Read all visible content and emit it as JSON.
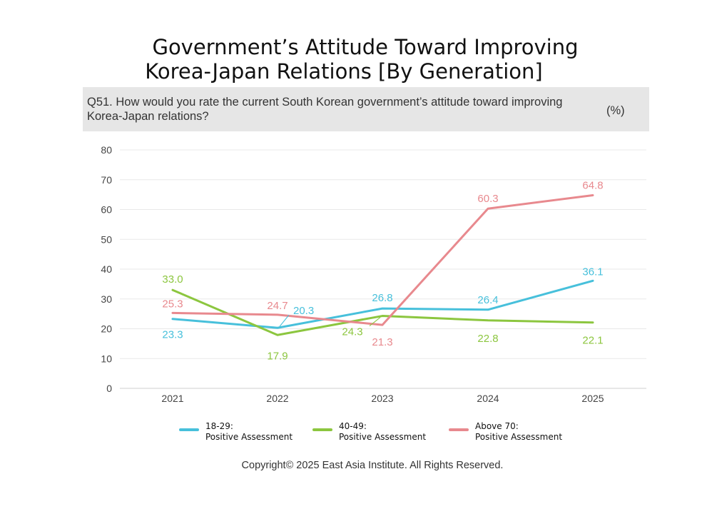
{
  "title_line1": "Government’s Attitude Toward Improving",
  "title_line2": "Korea-Japan Relations  [By Generation]",
  "question": "Q51. How would you rate the current South Korean government’s attitude toward improving Korea-Japan relations?",
  "unit": "(%)",
  "copyright": "Copyright© 2025 East Asia Institute. All Rights Reserved.",
  "chart_data": {
    "type": "line",
    "categories": [
      "2021",
      "2022",
      "2023",
      "2024",
      "2025"
    ],
    "ylim": [
      0,
      80
    ],
    "yticks": [
      0,
      10,
      20,
      30,
      40,
      50,
      60,
      70,
      80
    ],
    "grid": true,
    "legend_position": "bottom",
    "series": [
      {
        "name": "18-29: Positive Assessment",
        "legend_lines": [
          "18-29:",
          "Positive Assessment"
        ],
        "color": "#47c0db",
        "values": [
          23.3,
          20.3,
          26.8,
          26.4,
          36.1
        ],
        "labels": [
          "23.3",
          "20.3",
          "26.8",
          "26.4",
          "36.1"
        ]
      },
      {
        "name": "40-49: Positive Assessment",
        "legend_lines": [
          "40-49:",
          "Positive Assessment"
        ],
        "color": "#8cc63f",
        "values": [
          33.0,
          17.9,
          24.3,
          22.8,
          22.1
        ],
        "labels": [
          "33.0",
          "17.9",
          "24.3",
          "22.8",
          "22.1"
        ]
      },
      {
        "name": "Above 70: Positive Assessment",
        "legend_lines": [
          "Above 70:",
          "Positive Assessment"
        ],
        "color": "#e8898e",
        "values": [
          25.3,
          24.7,
          21.3,
          60.3,
          64.8
        ],
        "labels": [
          "25.3",
          "24.7",
          "21.3",
          "60.3",
          "64.8"
        ]
      }
    ]
  }
}
